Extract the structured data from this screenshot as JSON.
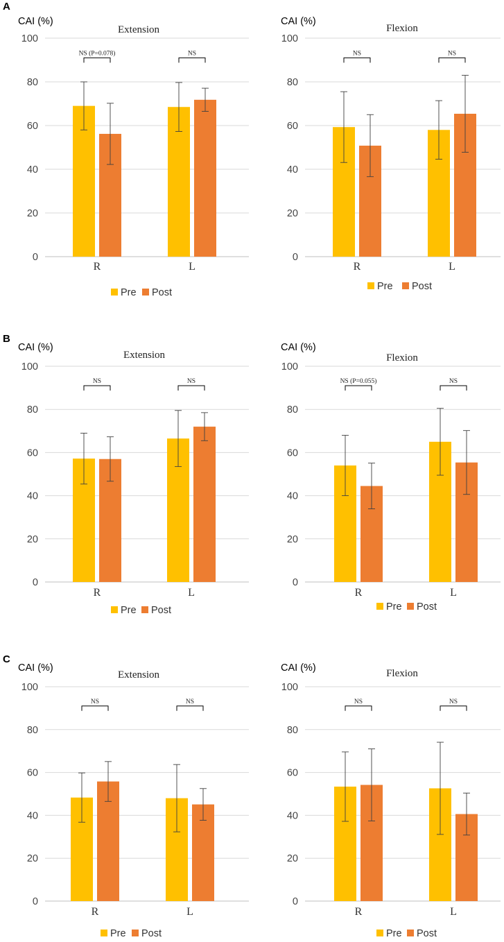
{
  "colors": {
    "pre": "#FFC000",
    "post": "#ED7D31"
  },
  "legend": {
    "pre": "Pre",
    "post": "Post"
  },
  "chart_data": [
    {
      "panel": "A",
      "ylabel": "CAI (%)",
      "title": "Extension",
      "type": "bar",
      "categories": [
        "R",
        "L"
      ],
      "ylim": [
        0,
        100
      ],
      "yticks": [
        0,
        20,
        40,
        60,
        80,
        100
      ],
      "series": [
        {
          "name": "Pre",
          "values": [
            69,
            68.5
          ],
          "errors": [
            11,
            11.2
          ]
        },
        {
          "name": "Post",
          "values": [
            56.2,
            71.8
          ],
          "errors": [
            14,
            5.3
          ]
        }
      ],
      "annotations": [
        "NS (P=0.078)",
        "NS"
      ]
    },
    {
      "panel": "",
      "ylabel": "CAI (%)",
      "title": "Flexion",
      "type": "bar",
      "categories": [
        "R",
        "L"
      ],
      "ylim": [
        0,
        100
      ],
      "yticks": [
        0,
        20,
        40,
        60,
        80,
        100
      ],
      "series": [
        {
          "name": "Pre",
          "values": [
            59.3,
            58
          ],
          "errors": [
            16.2,
            13.4
          ]
        },
        {
          "name": "Post",
          "values": [
            50.8,
            65.4
          ],
          "errors": [
            14.2,
            17.6
          ]
        }
      ],
      "annotations": [
        "NS",
        "NS"
      ]
    },
    {
      "panel": "B",
      "ylabel": "CAI (%)",
      "title": "Extension",
      "type": "bar",
      "categories": [
        "R",
        "L"
      ],
      "ylim": [
        0,
        100
      ],
      "yticks": [
        0,
        20,
        40,
        60,
        80,
        100
      ],
      "series": [
        {
          "name": "Pre",
          "values": [
            57.2,
            66.5
          ],
          "errors": [
            11.8,
            13
          ]
        },
        {
          "name": "Post",
          "values": [
            57,
            72
          ],
          "errors": [
            10.3,
            6.5
          ]
        }
      ],
      "annotations": [
        "NS",
        "NS"
      ]
    },
    {
      "panel": "",
      "ylabel": "CAI (%)",
      "title": "Flexion",
      "type": "bar",
      "categories": [
        "R",
        "L"
      ],
      "ylim": [
        0,
        100
      ],
      "yticks": [
        0,
        20,
        40,
        60,
        80,
        100
      ],
      "series": [
        {
          "name": "Pre",
          "values": [
            54,
            65
          ],
          "errors": [
            14,
            15.5
          ]
        },
        {
          "name": "Post",
          "values": [
            44.5,
            55.4
          ],
          "errors": [
            10.6,
            14.8
          ]
        }
      ],
      "annotations": [
        "NS (P=0.055)",
        "NS"
      ]
    },
    {
      "panel": "C",
      "ylabel": "CAI (%)",
      "title": "Extension",
      "type": "bar",
      "categories": [
        "R",
        "L"
      ],
      "ylim": [
        0,
        100
      ],
      "yticks": [
        0,
        20,
        40,
        60,
        80,
        100
      ],
      "series": [
        {
          "name": "Pre",
          "values": [
            48.3,
            48
          ],
          "errors": [
            11.5,
            15.7
          ]
        },
        {
          "name": "Post",
          "values": [
            55.8,
            45.1
          ],
          "errors": [
            9.3,
            7.4
          ]
        }
      ],
      "annotations": [
        "NS",
        "NS"
      ]
    },
    {
      "panel": "",
      "ylabel": "CAI (%)",
      "title": "Flexion",
      "type": "bar",
      "categories": [
        "R",
        "L"
      ],
      "ylim": [
        0,
        100
      ],
      "yticks": [
        0,
        20,
        40,
        60,
        80,
        100
      ],
      "series": [
        {
          "name": "Pre",
          "values": [
            53.4,
            52.6
          ],
          "errors": [
            16.2,
            21.5
          ]
        },
        {
          "name": "Post",
          "values": [
            54.2,
            40.6
          ],
          "errors": [
            16.8,
            9.8
          ]
        }
      ],
      "annotations": [
        "NS",
        "NS"
      ]
    }
  ]
}
